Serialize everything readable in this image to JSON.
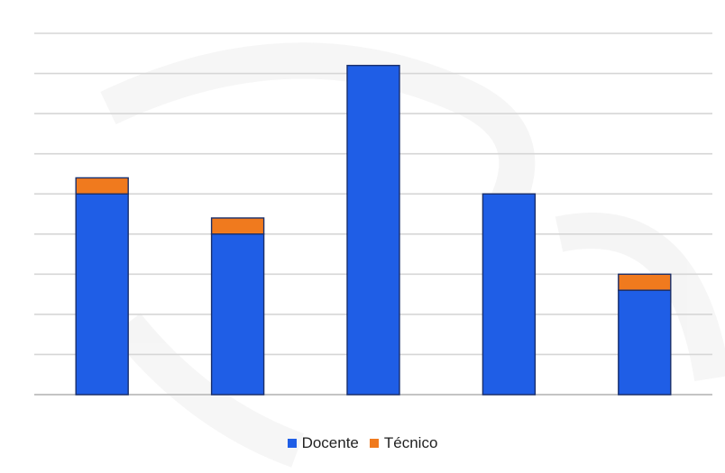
{
  "chart_data": {
    "type": "bar",
    "stacked": true,
    "title": "",
    "xlabel": "",
    "ylabel": "",
    "categories": [
      "",
      "",
      "",
      "",
      ""
    ],
    "series": [
      {
        "name": "Docente",
        "color": "#1f5ee6",
        "values": [
          5,
          4,
          8.2,
          5,
          2.6
        ]
      },
      {
        "name": "Técnico",
        "color": "#f07a1e",
        "values": [
          0.4,
          0.4,
          0,
          0,
          0.4
        ]
      }
    ],
    "ylim": [
      0,
      9
    ],
    "grid": true,
    "legend_position": "bottom-center"
  }
}
